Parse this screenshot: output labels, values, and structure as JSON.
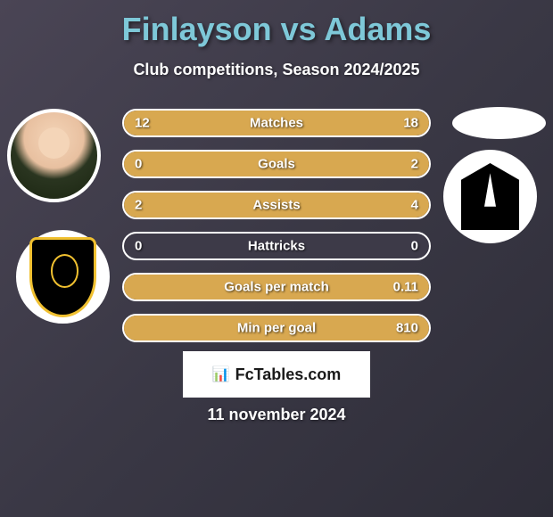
{
  "title": "Finlayson vs Adams",
  "subtitle": "Club competitions, Season 2024/2025",
  "date": "11 november 2024",
  "watermark": "FcTables.com",
  "colors": {
    "title_color": "#7ec8d8",
    "bar_fill": "#d8a850",
    "bar_bg": "#3d3a48",
    "bar_border": "#ffffff"
  },
  "stats": [
    {
      "label": "Matches",
      "left_value": "12",
      "right_value": "18",
      "left_pct": 40,
      "right_pct": 60
    },
    {
      "label": "Goals",
      "left_value": "0",
      "right_value": "2",
      "left_pct": 0,
      "right_pct": 100
    },
    {
      "label": "Assists",
      "left_value": "2",
      "right_value": "4",
      "left_pct": 33,
      "right_pct": 67
    },
    {
      "label": "Hattricks",
      "left_value": "0",
      "right_value": "0",
      "left_pct": 0,
      "right_pct": 0
    },
    {
      "label": "Goals per match",
      "left_value": "",
      "right_value": "0.11",
      "left_pct": 0,
      "right_pct": 100
    },
    {
      "label": "Min per goal",
      "left_value": "",
      "right_value": "810",
      "left_pct": 0,
      "right_pct": 100
    }
  ]
}
